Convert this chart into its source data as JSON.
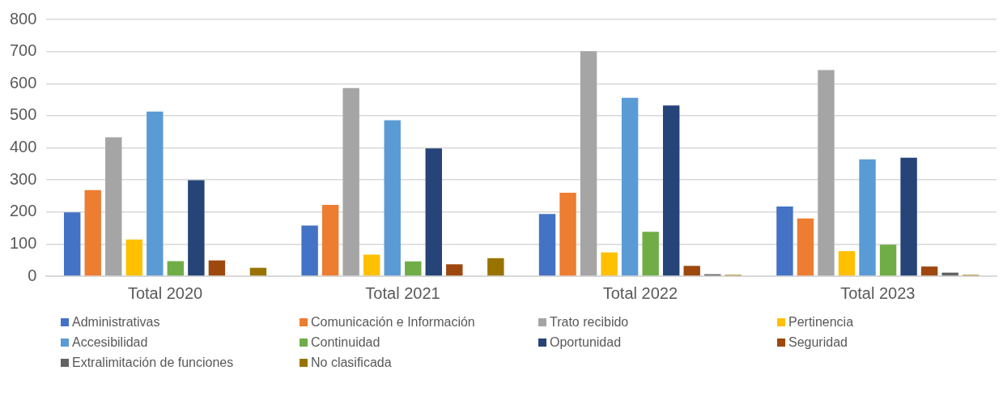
{
  "chart_data": {
    "type": "bar",
    "categories": [
      "Total 2020",
      "Total 2021",
      "Total 2022",
      "Total 2023"
    ],
    "series": [
      {
        "name": "Administrativas",
        "color": "#4472c4",
        "values": [
          199,
          158,
          194,
          217
        ]
      },
      {
        "name": "Comunicación e Información",
        "color": "#ed7d31",
        "values": [
          268,
          222,
          260,
          180
        ]
      },
      {
        "name": "Trato recibido",
        "color": "#a5a5a5",
        "values": [
          433,
          586,
          701,
          642
        ]
      },
      {
        "name": "Pertinencia",
        "color": "#ffc000",
        "values": [
          114,
          67,
          74,
          78
        ]
      },
      {
        "name": "Accesibilidad",
        "color": "#5b9bd5",
        "values": [
          513,
          486,
          556,
          364
        ]
      },
      {
        "name": "Continuidad",
        "color": "#70ad47",
        "values": [
          47,
          46,
          138,
          98
        ]
      },
      {
        "name": "Oportunidad",
        "color": "#264478",
        "values": [
          299,
          398,
          532,
          369
        ]
      },
      {
        "name": "Seguridad",
        "color": "#9e480e",
        "values": [
          49,
          37,
          32,
          30
        ]
      },
      {
        "name": "Extralimitación de funciones",
        "color": "#636363",
        "values": [
          null,
          null,
          6,
          11
        ]
      },
      {
        "name": "No clasificada",
        "color": "#997300",
        "values": [
          26,
          56,
          4,
          4
        ]
      }
    ],
    "ylim": [
      0,
      800
    ],
    "yticks": [
      0,
      100,
      200,
      300,
      400,
      500,
      600,
      700,
      800
    ],
    "grid": "y",
    "legend": "bottom"
  }
}
